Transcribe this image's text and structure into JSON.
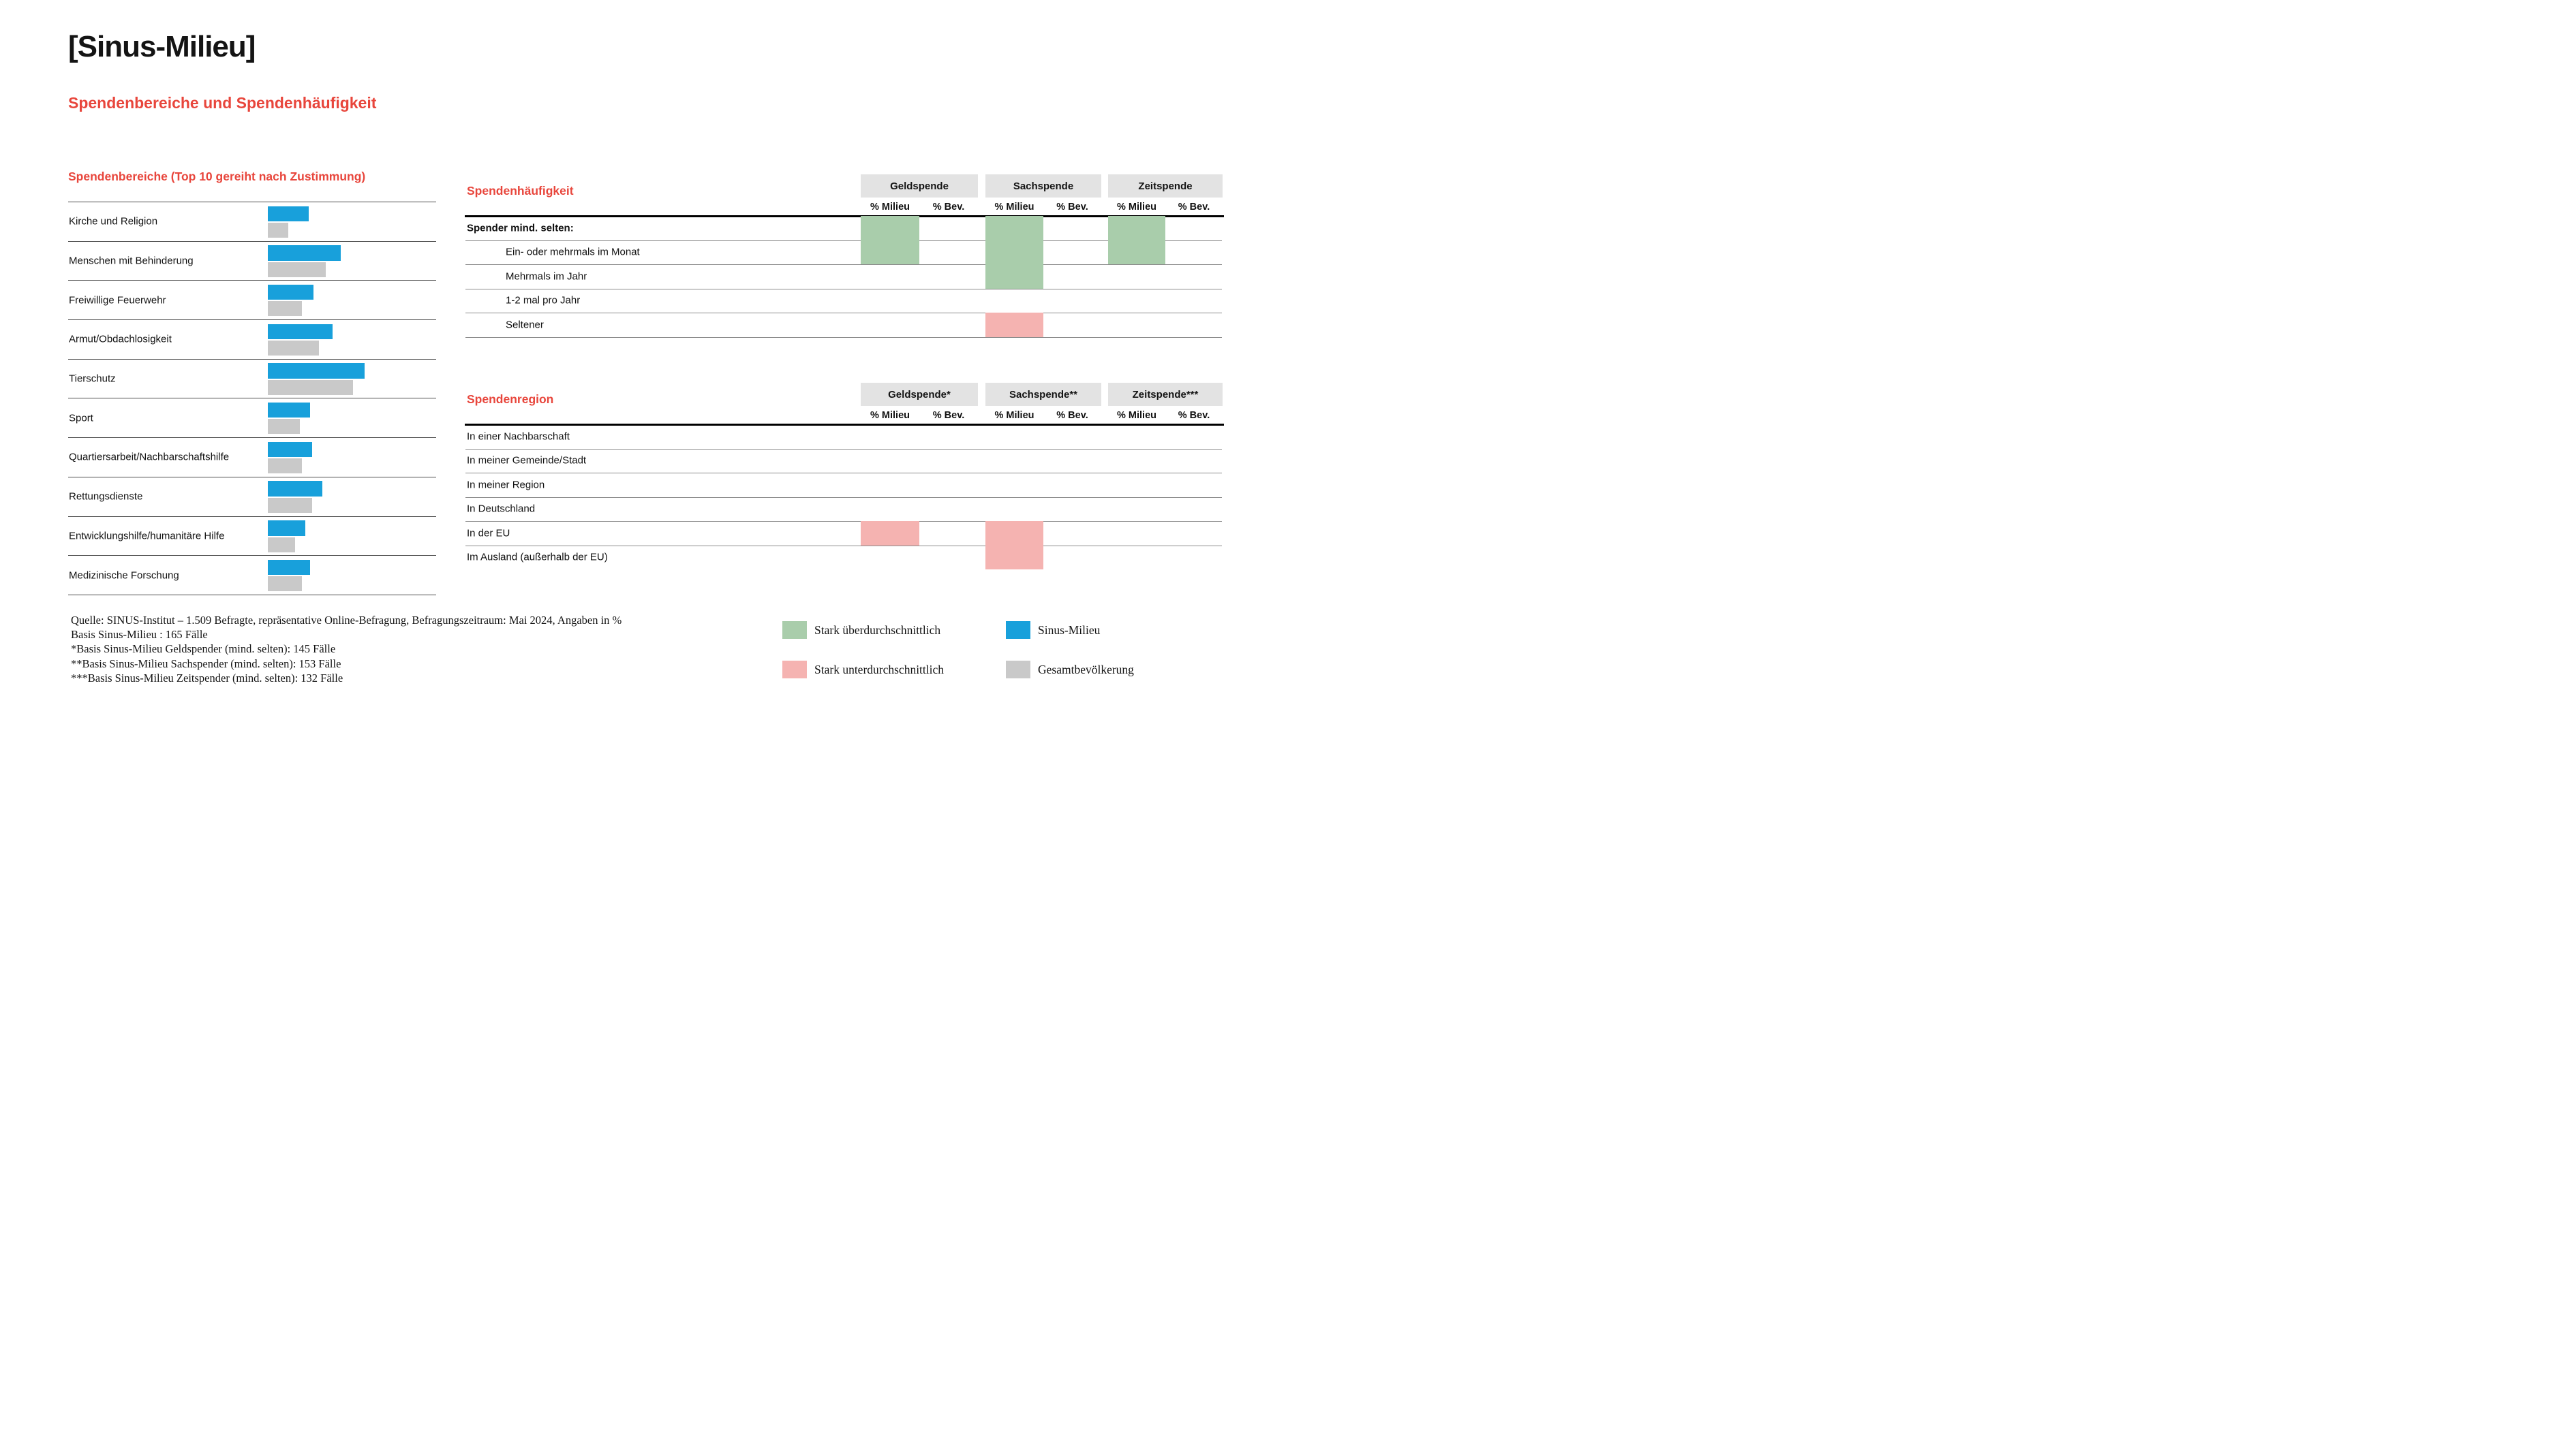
{
  "header": {
    "title": "[Sinus-Milieu]",
    "subtitle": "Spendenbereiche und Spendenhäufigkeit"
  },
  "colors": {
    "red_accent": "#E8463C",
    "milieu_blue": "#18A0DB",
    "bev_gray": "#C9C9C9",
    "above_green": "#A9CDAB",
    "below_pink": "#F5B3B1",
    "header_box_gray": "#E3E3E3"
  },
  "areas_chart": {
    "title": "Spendenbereiche (Top 10 gereiht nach Zustimmung)",
    "series_names": [
      "Sinus-Milieu",
      "Gesamtbevölkerung"
    ],
    "rows": [
      {
        "label": "Kirche und Religion",
        "milieu": 12,
        "bev": 6
      },
      {
        "label": "Menschen mit Behinderung",
        "milieu": 21.5,
        "bev": 17
      },
      {
        "label": "Freiwillige Feuerwehr",
        "milieu": 13.5,
        "bev": 10
      },
      {
        "label": "Armut/Obdachlosigkeit",
        "milieu": 19,
        "bev": 15
      },
      {
        "label": "Tierschutz",
        "milieu": 28.5,
        "bev": 25
      },
      {
        "label": "Sport",
        "milieu": 12.5,
        "bev": 9.5
      },
      {
        "label": "Quartiersarbeit/Nachbarschaftshilfe",
        "milieu": 13,
        "bev": 10
      },
      {
        "label": "Rettungsdienste",
        "milieu": 16,
        "bev": 13
      },
      {
        "label": "Entwicklungshilfe/humanitäre Hilfe",
        "milieu": 11,
        "bev": 8
      },
      {
        "label": "Medizinische Forschung",
        "milieu": 12.5,
        "bev": 10
      }
    ]
  },
  "frequency_table": {
    "title": "Spendenhäufigkeit",
    "column_groups": [
      "Geldspende",
      "Sachspende",
      "Zeitspende"
    ],
    "subheaders": [
      "% Milieu",
      "% Bev."
    ],
    "rows": [
      {
        "label": "Spender mind. selten:",
        "bold": true,
        "indent": false,
        "cells": [
          "green",
          "",
          "green",
          "",
          "green",
          ""
        ]
      },
      {
        "label": "Ein- oder mehrmals im Monat",
        "bold": false,
        "indent": true,
        "cells": [
          "green",
          "",
          "green",
          "",
          "green",
          ""
        ]
      },
      {
        "label": "Mehrmals im Jahr",
        "bold": false,
        "indent": true,
        "cells": [
          "",
          "",
          "green",
          "",
          "",
          ""
        ]
      },
      {
        "label": "1-2 mal pro Jahr",
        "bold": false,
        "indent": true,
        "cells": [
          "",
          "",
          "",
          "",
          "",
          ""
        ]
      },
      {
        "label": "Seltener",
        "bold": false,
        "indent": true,
        "cells": [
          "",
          "",
          "red",
          "",
          "",
          ""
        ]
      }
    ]
  },
  "region_table": {
    "title": "Spendenregion",
    "column_groups": [
      "Geldspende*",
      "Sachspende**",
      "Zeitspende***"
    ],
    "subheaders": [
      "% Milieu",
      "% Bev."
    ],
    "rows": [
      {
        "label": "In einer Nachbarschaft",
        "bold": false,
        "indent": false,
        "cells": [
          "",
          "",
          "",
          "",
          "",
          ""
        ]
      },
      {
        "label": "In meiner Gemeinde/Stadt",
        "bold": false,
        "indent": false,
        "cells": [
          "",
          "",
          "",
          "",
          "",
          ""
        ]
      },
      {
        "label": "In meiner Region",
        "bold": false,
        "indent": false,
        "cells": [
          "",
          "",
          "",
          "",
          "",
          ""
        ]
      },
      {
        "label": "In Deutschland",
        "bold": false,
        "indent": false,
        "cells": [
          "",
          "",
          "",
          "",
          "",
          ""
        ]
      },
      {
        "label": "In der EU",
        "bold": false,
        "indent": false,
        "cells": [
          "red",
          "",
          "red",
          "",
          "",
          ""
        ]
      },
      {
        "label": "Im Ausland (außerhalb der EU)",
        "bold": false,
        "indent": false,
        "cells": [
          "",
          "",
          "red",
          "",
          "",
          ""
        ]
      }
    ]
  },
  "legend": {
    "items": [
      {
        "swatch": "green",
        "label": "Stark überdurchschnittlich"
      },
      {
        "swatch": "pink",
        "label": "Stark unterdurchschnittlich"
      },
      {
        "swatch": "blue",
        "label": "Sinus-Milieu"
      },
      {
        "swatch": "gray",
        "label": "Gesamtbevölkerung"
      }
    ]
  },
  "footer": {
    "notes": [
      "Quelle: SINUS-Institut – 1.509 Befragte, repräsentative Online-Befragung, Befragungszeitraum: Mai 2024, Angaben in %",
      "Basis Sinus-Milieu : 165 Fälle",
      "*Basis Sinus-Milieu Geldspender (mind. selten): 145 Fälle",
      "**Basis Sinus-Milieu Sachspender (mind. selten): 153 Fälle",
      "***Basis Sinus-Milieu Zeitspender (mind. selten): 132 Fälle"
    ]
  },
  "chart_data": [
    {
      "type": "bar",
      "orientation": "horizontal",
      "title": "Spendenbereiche (Top 10 gereiht nach Zustimmung)",
      "categories": [
        "Kirche und Religion",
        "Menschen mit Behinderung",
        "Freiwillige Feuerwehr",
        "Armut/Obdachlosigkeit",
        "Tierschutz",
        "Sport",
        "Quartiersarbeit/Nachbarschaftshilfe",
        "Rettungsdienste",
        "Entwicklungshilfe/humanitäre Hilfe",
        "Medizinische Forschung"
      ],
      "series": [
        {
          "name": "Sinus-Milieu",
          "values": [
            12,
            21.5,
            13.5,
            19,
            28.5,
            12.5,
            13,
            16,
            11,
            12.5
          ]
        },
        {
          "name": "Gesamtbevölkerung",
          "values": [
            6,
            17,
            10,
            15,
            25,
            9.5,
            10,
            13,
            8,
            10
          ]
        }
      ],
      "xlabel": "",
      "ylabel": "",
      "xlim": [
        0,
        30
      ],
      "value_note": "values estimated from bar lengths; no numeric labels shown in image",
      "grid": "row separator lines only",
      "legend_position": "bottom-right"
    },
    {
      "type": "table",
      "title": "Spendenhäufigkeit",
      "column_groups": [
        "Geldspende",
        "Sachspende",
        "Zeitspende"
      ],
      "subcolumns": [
        "% Milieu",
        "% Bev."
      ],
      "row_labels": [
        "Spender mind. selten:",
        "Ein- oder mehrmals im Monat",
        "Mehrmals im Jahr",
        "1-2 mal pro Jahr",
        "Seltener"
      ],
      "cell_highlights": [
        [
          "green",
          "",
          "green",
          "",
          "green",
          ""
        ],
        [
          "green",
          "",
          "green",
          "",
          "green",
          ""
        ],
        [
          "",
          "",
          "green",
          "",
          "",
          ""
        ],
        [
          "",
          "",
          "",
          "",
          "",
          ""
        ],
        [
          "",
          "",
          "red",
          "",
          "",
          ""
        ]
      ],
      "highlight_meaning": {
        "green": "Stark überdurchschnittlich",
        "red": "Stark unterdurchschnittlich"
      }
    },
    {
      "type": "table",
      "title": "Spendenregion",
      "column_groups": [
        "Geldspende*",
        "Sachspende**",
        "Zeitspende***"
      ],
      "subcolumns": [
        "% Milieu",
        "% Bev."
      ],
      "row_labels": [
        "In einer Nachbarschaft",
        "In meiner Gemeinde/Stadt",
        "In meiner Region",
        "In Deutschland",
        "In der EU",
        "Im Ausland (außerhalb der EU)"
      ],
      "cell_highlights": [
        [
          "",
          "",
          "",
          "",
          "",
          ""
        ],
        [
          "",
          "",
          "",
          "",
          "",
          ""
        ],
        [
          "",
          "",
          "",
          "",
          "",
          ""
        ],
        [
          "",
          "",
          "",
          "",
          "",
          ""
        ],
        [
          "red",
          "",
          "red",
          "",
          "",
          ""
        ],
        [
          "",
          "",
          "red",
          "",
          "",
          ""
        ]
      ],
      "highlight_meaning": {
        "green": "Stark überdurchschnittlich",
        "red": "Stark unterdurchschnittlich"
      }
    }
  ]
}
